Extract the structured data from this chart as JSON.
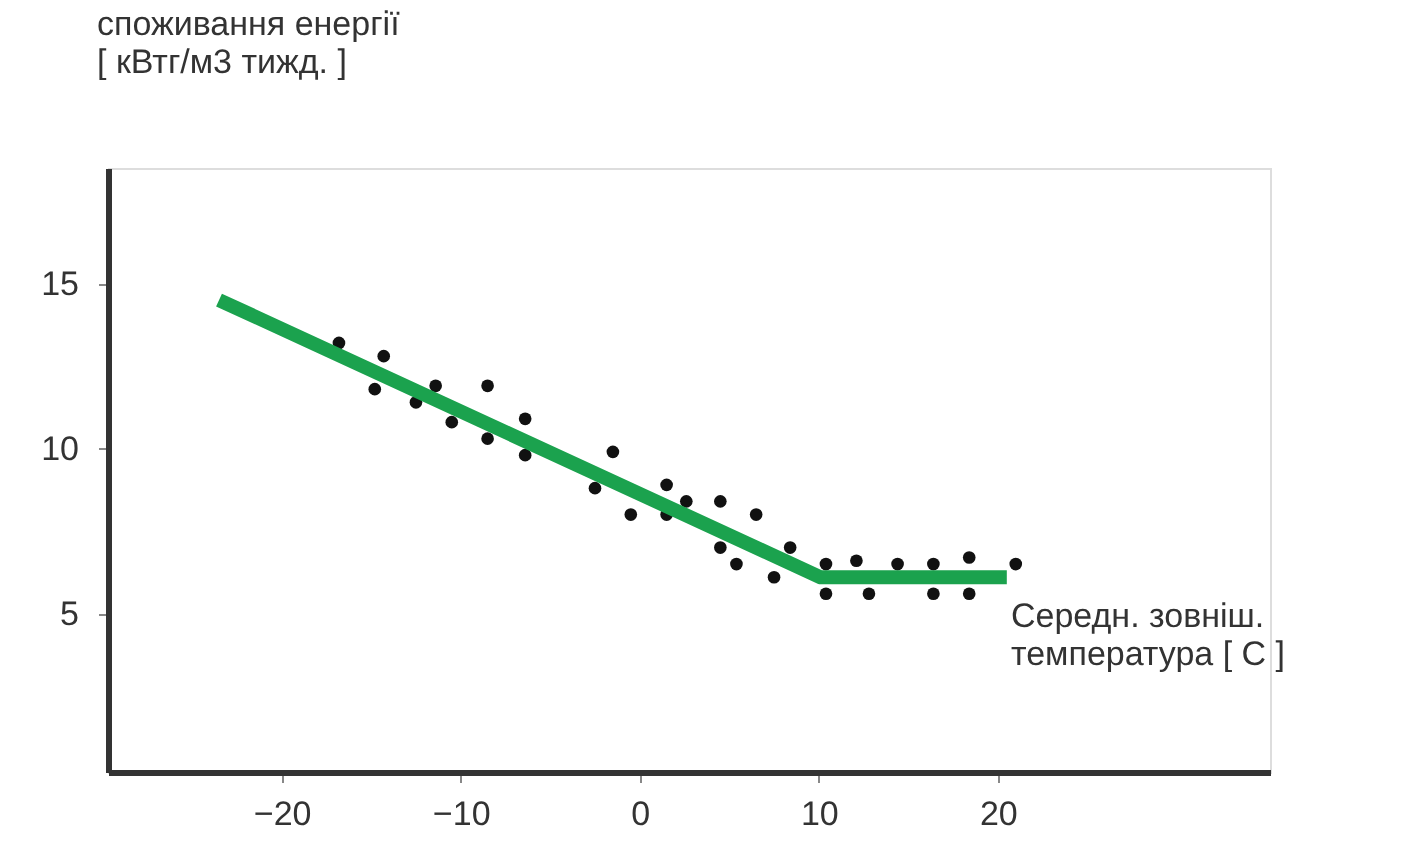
{
  "chart_data": {
    "type": "scatter",
    "ylabel": "споживання енергії\n[ кВтг/м3 тижд. ]",
    "xlabel": "Середн. зовніш.\nтемпература [ C ]",
    "xlim": [
      -29.7,
      35.2
    ],
    "xticks": [
      -20,
      -10,
      0,
      10,
      20
    ],
    "ylim": [
      0.2,
      18.5
    ],
    "yticks": [
      5,
      10,
      15
    ],
    "grid": false,
    "series": [
      {
        "marker": "circle",
        "color": "#111111",
        "x": [
          -16.8,
          -14.3,
          -14.8,
          -12.5,
          -11.4,
          -10.5,
          -8.5,
          -8.5,
          -6.4,
          -6.4,
          -2.5,
          -1.5,
          -0.5,
          1.5,
          1.5,
          2.6,
          4.5,
          4.5,
          5.4,
          6.5,
          7.5,
          8.4,
          10.4,
          10.4,
          12.1,
          12.8,
          14.4,
          16.4,
          16.4,
          18.4,
          18.4,
          21.0
        ],
        "values": [
          13.2,
          12.8,
          11.8,
          11.4,
          11.9,
          10.8,
          11.9,
          10.3,
          10.9,
          9.8,
          8.8,
          9.9,
          8.0,
          8.9,
          8.0,
          8.4,
          8.4,
          7.0,
          6.5,
          8.0,
          6.1,
          7.0,
          6.5,
          5.6,
          6.6,
          5.6,
          6.5,
          6.5,
          5.6,
          6.7,
          5.6,
          6.5
        ]
      },
      {
        "type": "line",
        "line_style": "solid",
        "color": "#1ba24e",
        "x": [
          -23.5,
          10.1,
          20.5
        ],
        "values": [
          14.5,
          6.1,
          6.1
        ]
      }
    ]
  }
}
